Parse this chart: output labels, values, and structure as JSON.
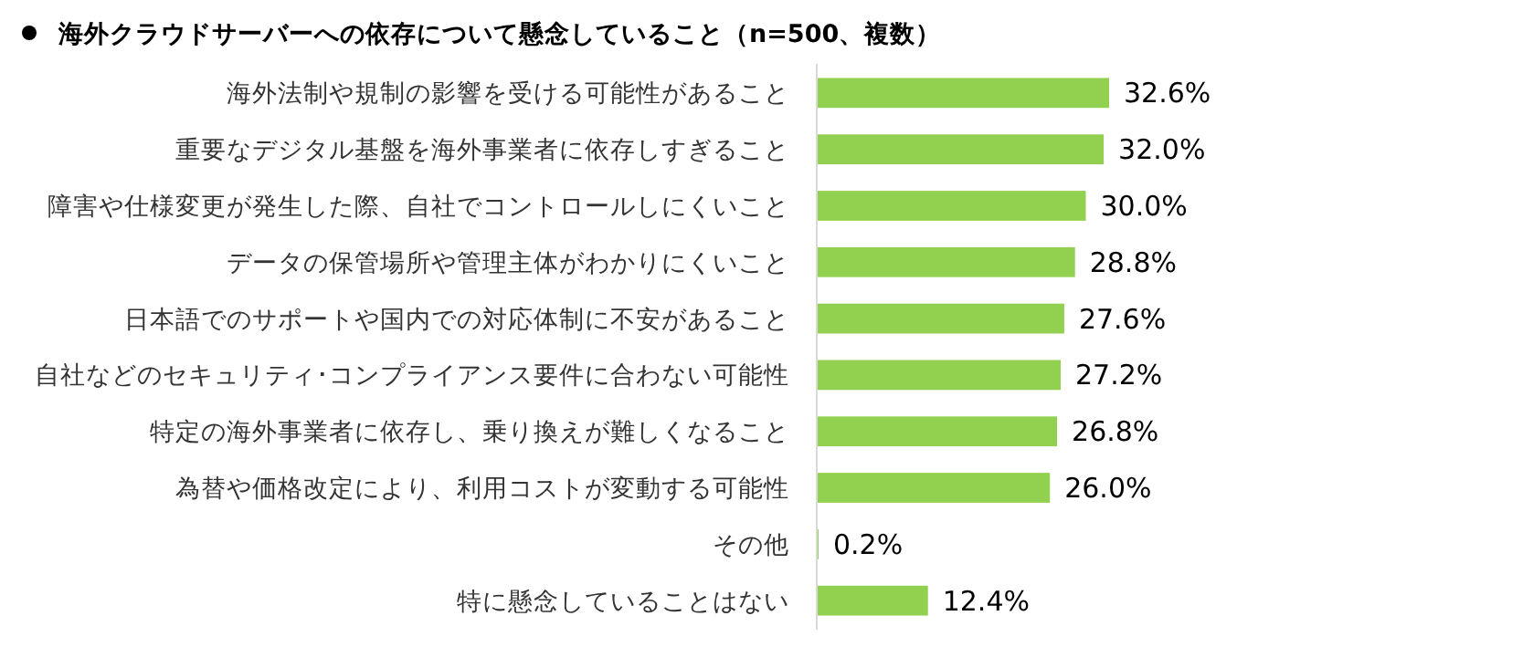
{
  "chart_data": {
    "type": "bar",
    "orientation": "horizontal",
    "title": "海外クラウドサーバーへの依存について懸念していること（n=500、複数）",
    "categories": [
      "海外法制や規制の影響を受ける可能性があること",
      "重要なデジタル基盤を海外事業者に依存しすぎること",
      "障害や仕様変更が発生した際、自社でコントロールしにくいこと",
      "データの保管場所や管理主体がわかりにくいこと",
      "日本語でのサポートや国内での対応体制に不安があること",
      "自社などのセキュリティ･コンプライアンス要件に合わない可能性",
      "特定の海外事業者に依存し、乗り換えが難しくなること",
      "為替や価格改定により、利用コストが変動する可能性",
      "その他",
      "特に懸念していることはない"
    ],
    "values": [
      32.6,
      32.0,
      30.0,
      28.8,
      27.6,
      27.2,
      26.8,
      26.0,
      0.2,
      12.4
    ],
    "value_labels": [
      "32.6%",
      "32.0%",
      "30.0%",
      "28.8%",
      "27.6%",
      "27.2%",
      "26.8%",
      "26.0%",
      "0.2%",
      "12.4%"
    ],
    "color": "#92d050"
  }
}
